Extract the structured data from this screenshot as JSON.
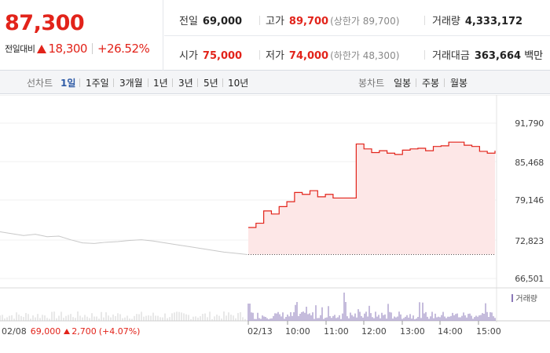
{
  "quote": {
    "price": "87,300",
    "change_label": "전일대비",
    "change_amount": "18,300",
    "change_percent": "+26.52%",
    "direction": "up",
    "up_color": "#e2231a"
  },
  "stats": {
    "prev_close": {
      "label": "전일",
      "value": "69,000"
    },
    "high": {
      "label": "고가",
      "value": "89,700",
      "sub": "(상한가 89,700)"
    },
    "volume": {
      "label": "거래량",
      "value": "4,333,172"
    },
    "open": {
      "label": "시가",
      "value": "75,000"
    },
    "low": {
      "label": "저가",
      "value": "74,000",
      "sub": "(하한가 48,300)"
    },
    "trade_value": {
      "label": "거래대금",
      "value": "363,664",
      "unit": "백만"
    }
  },
  "toolbar": {
    "line_chart_label": "선차트",
    "periods": [
      "1일",
      "1주일",
      "3개월",
      "1년",
      "3년",
      "5년",
      "10년"
    ],
    "active_period": "1일",
    "candle_chart_label": "봉차트",
    "candles": [
      "일봉",
      "주봉",
      "월봉"
    ]
  },
  "chart": {
    "y_ticks": [
      "91,790",
      "85,468",
      "79,146",
      "72,823",
      "66,501"
    ],
    "x_ticks": [
      "02/13",
      "10:00",
      "11:00",
      "12:00",
      "13:00",
      "14:00",
      "15:00"
    ],
    "prev_day_label": "02/08",
    "prev_day_price": "69,000",
    "prev_day_change": "2,700",
    "prev_day_pct": "(+4.07%)",
    "volume_legend": "거래량",
    "line_color": "#e2231a",
    "fill_color": "#fde7e7",
    "volume_color": "#8b78b8"
  },
  "chart_data": {
    "type": "line",
    "ylim": [
      66501,
      91790
    ],
    "series": [
      {
        "values": [
          74800,
          75500,
          77500,
          77000,
          78200,
          79000,
          80500,
          80200,
          80800,
          79800,
          80200,
          79600,
          79600,
          79600,
          88400,
          87600,
          87000,
          87300,
          86900,
          86700,
          87400,
          87600,
          87700,
          87300,
          88000,
          88100,
          88700,
          88700,
          88200,
          88000,
          87200,
          86900,
          87300
        ]
      },
      {
        "values": [
          74100,
          73800,
          73500,
          73700,
          73300,
          73400,
          72800,
          72300,
          72200,
          72400,
          72500,
          72700,
          72800,
          72600,
          72300,
          72000,
          71700,
          71400,
          71100,
          70800,
          70600,
          70400
        ]
      }
    ]
  }
}
